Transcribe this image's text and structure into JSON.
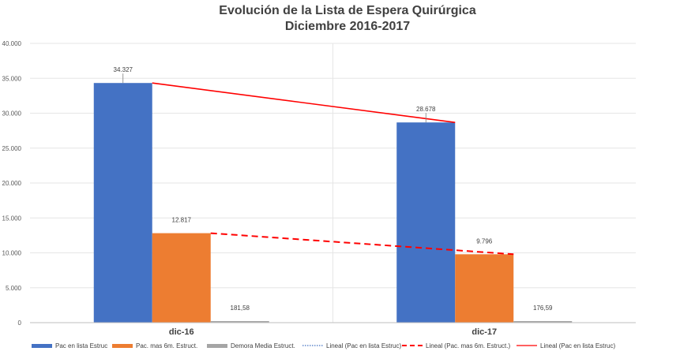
{
  "chart_data": {
    "type": "bar",
    "title": "Evolución de la Lista de Espera  Quirúrgica",
    "subtitle": "Diciembre 2016-2017",
    "categories": [
      "dic-16",
      "dic-17"
    ],
    "series": [
      {
        "name": "Pac en lista Estruc",
        "values": [
          34327,
          28678
        ],
        "labels": [
          "34.327",
          "28.678"
        ],
        "color": "#4472C4"
      },
      {
        "name": "Pac. mas 6m. Estruct.",
        "values": [
          12817,
          9796
        ],
        "labels": [
          "12.817",
          "9.796"
        ],
        "color": "#ED7D31"
      },
      {
        "name": "Demora Media Estruct.",
        "values": [
          181.58,
          176.59
        ],
        "labels": [
          "181,58",
          "176,59"
        ],
        "color": "#A5A5A5"
      }
    ],
    "trendlines": [
      {
        "name": "Lineal (Pac en lista Estruc)",
        "of_series": 0,
        "style": "dotted",
        "color": "#4472C4",
        "shown_in_plot": false
      },
      {
        "name": "Lineal (Pac. mas 6m. Estruct.)",
        "of_series": 1,
        "style": "dashed",
        "color": "#FF0000",
        "shown_in_plot": true
      },
      {
        "name": "Lineal (Pac en lista Estruc)",
        "of_series": 0,
        "style": "solid",
        "color": "#FF0000",
        "shown_in_plot": true
      }
    ],
    "ylim": [
      0,
      40000
    ],
    "yticks": [
      {
        "value": 0,
        "label": "0"
      },
      {
        "value": 5000,
        "label": "5.000"
      },
      {
        "value": 10000,
        "label": "10.000"
      },
      {
        "value": 15000,
        "label": "15.000"
      },
      {
        "value": 20000,
        "label": "20.000"
      },
      {
        "value": 25000,
        "label": "25.000"
      },
      {
        "value": 30000,
        "label": "30.000"
      },
      {
        "value": 35000,
        "label": "35.000"
      },
      {
        "value": 40000,
        "label": "40.000"
      }
    ],
    "grid": true,
    "legend_position": "bottom"
  }
}
